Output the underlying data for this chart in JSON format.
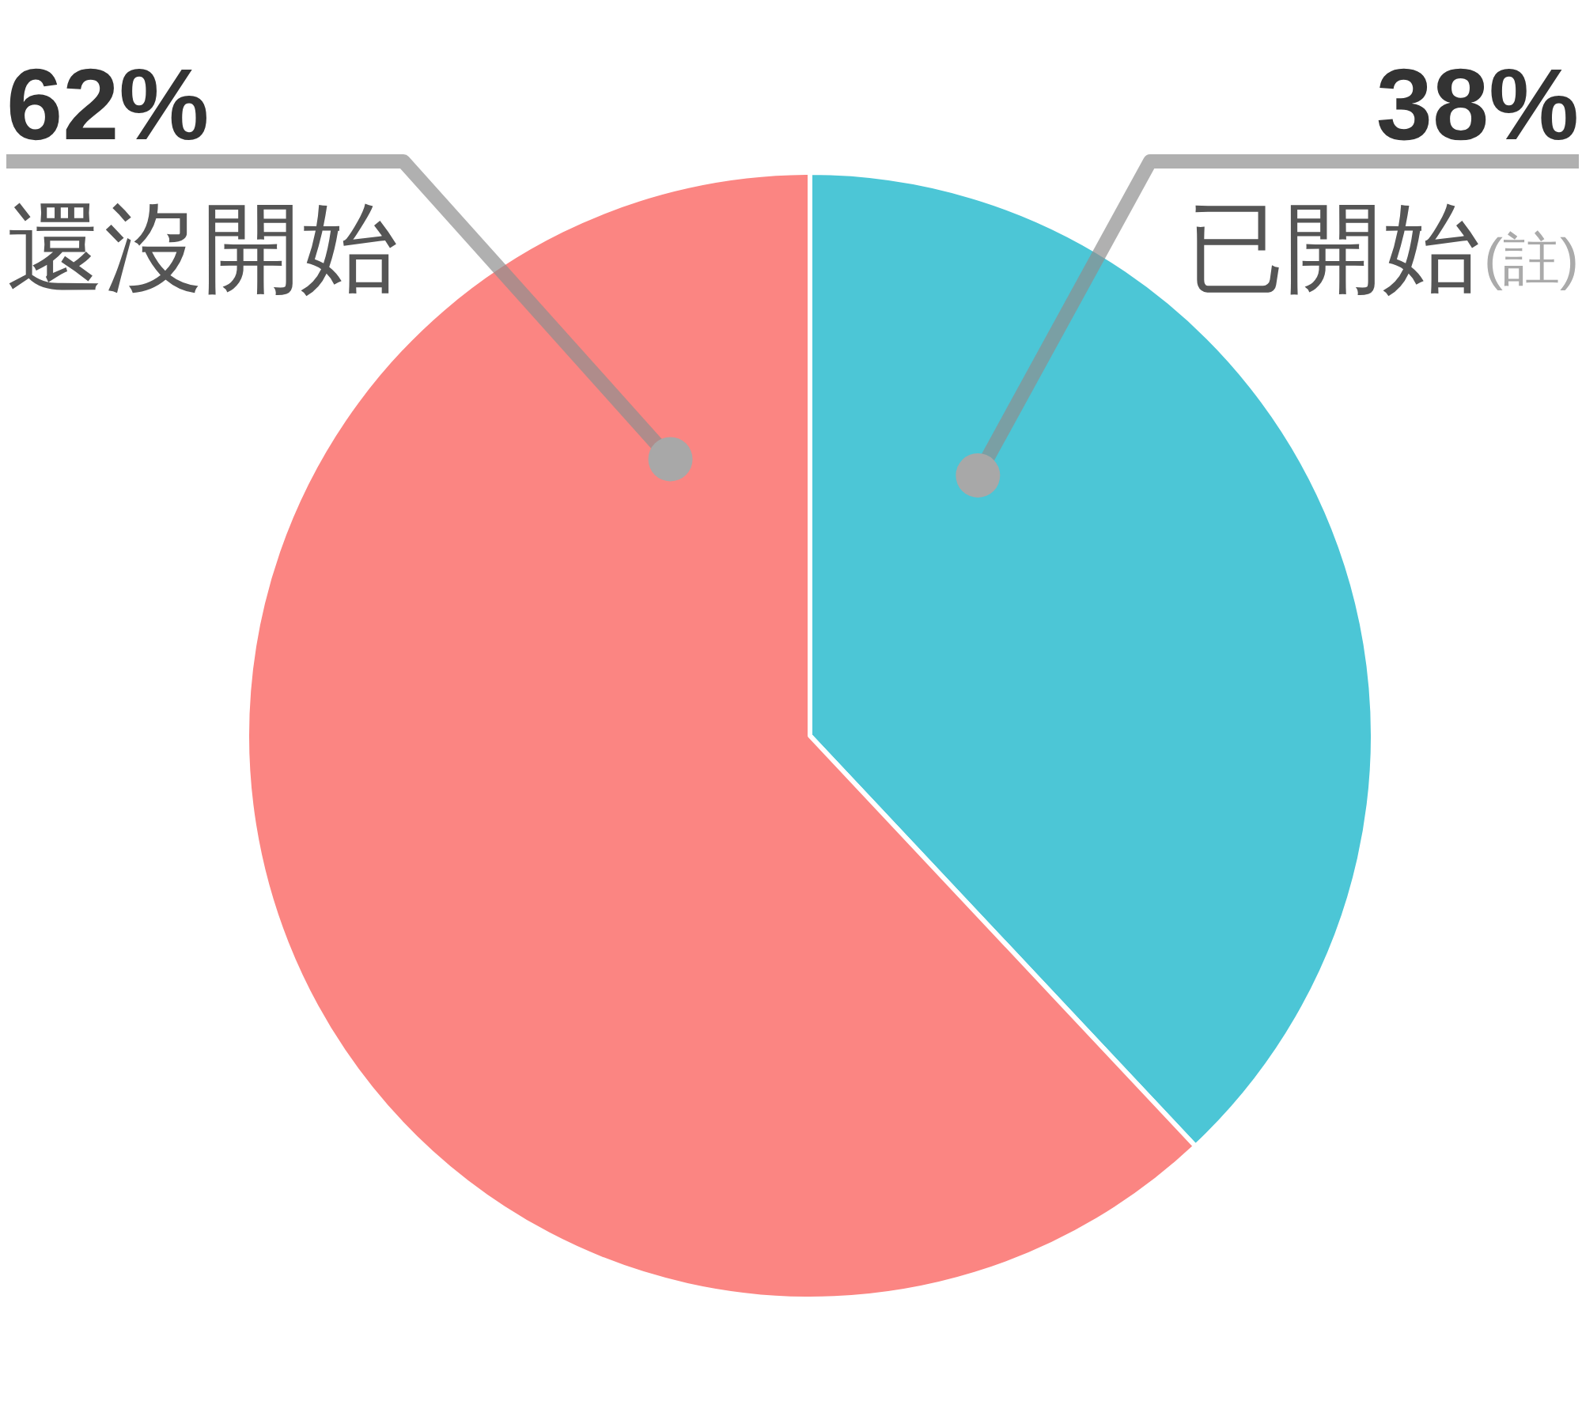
{
  "chart_data": {
    "type": "pie",
    "categories": [
      "已開始",
      "還沒開始"
    ],
    "values": [
      38,
      62
    ],
    "colors": [
      "#4cc6d6",
      "#fb8582"
    ],
    "value_labels": [
      "38%",
      "62%"
    ],
    "annotations": [
      "(註)"
    ]
  }
}
